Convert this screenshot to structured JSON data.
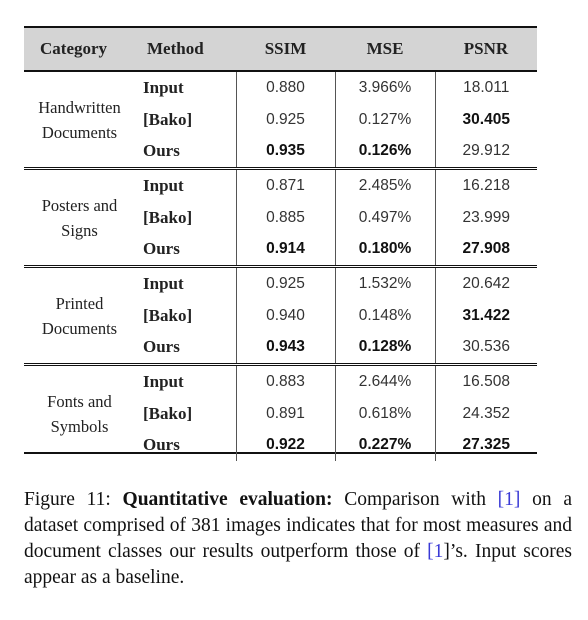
{
  "table": {
    "headers": [
      "Category",
      "Method",
      "SSIM",
      "MSE",
      "PSNR"
    ],
    "groups": [
      {
        "category_lines": [
          "Handwritten",
          "Documents"
        ],
        "rows": [
          {
            "method": "Input",
            "ssim": "0.880",
            "mse": "3.966%",
            "psnr": "18.011",
            "bold": [
              false,
              false,
              false
            ]
          },
          {
            "method": "[Bako]",
            "ssim": "0.925",
            "mse": "0.127%",
            "psnr": "30.405",
            "bold": [
              false,
              false,
              true
            ]
          },
          {
            "method": "Ours",
            "ssim": "0.935",
            "mse": "0.126%",
            "psnr": "29.912",
            "bold": [
              true,
              true,
              false
            ]
          }
        ]
      },
      {
        "category_lines": [
          "Posters and",
          "Signs"
        ],
        "rows": [
          {
            "method": "Input",
            "ssim": "0.871",
            "mse": "2.485%",
            "psnr": "16.218",
            "bold": [
              false,
              false,
              false
            ]
          },
          {
            "method": "[Bako]",
            "ssim": "0.885",
            "mse": "0.497%",
            "psnr": "23.999",
            "bold": [
              false,
              false,
              false
            ]
          },
          {
            "method": "Ours",
            "ssim": "0.914",
            "mse": "0.180%",
            "psnr": "27.908",
            "bold": [
              true,
              true,
              true
            ]
          }
        ]
      },
      {
        "category_lines": [
          "Printed",
          "Documents"
        ],
        "rows": [
          {
            "method": "Input",
            "ssim": "0.925",
            "mse": "1.532%",
            "psnr": "20.642",
            "bold": [
              false,
              false,
              false
            ]
          },
          {
            "method": "[Bako]",
            "ssim": "0.940",
            "mse": "0.148%",
            "psnr": "31.422",
            "bold": [
              false,
              false,
              true
            ]
          },
          {
            "method": "Ours",
            "ssim": "0.943",
            "mse": "0.128%",
            "psnr": "30.536",
            "bold": [
              true,
              true,
              false
            ]
          }
        ]
      },
      {
        "category_lines": [
          "Fonts and",
          "Symbols"
        ],
        "rows": [
          {
            "method": "Input",
            "ssim": "0.883",
            "mse": "2.644%",
            "psnr": "16.508",
            "bold": [
              false,
              false,
              false
            ]
          },
          {
            "method": "[Bako]",
            "ssim": "0.891",
            "mse": "0.618%",
            "psnr": "24.352",
            "bold": [
              false,
              false,
              false
            ]
          },
          {
            "method": "Ours",
            "ssim": "0.922",
            "mse": "0.227%",
            "psnr": "27.325",
            "bold": [
              true,
              true,
              true
            ]
          }
        ]
      }
    ]
  },
  "caption": {
    "label": "Figure 11:",
    "heading": "Quantitative evaluation:",
    "part1": "Comparison with",
    "ref": "1",
    "part2": "on a dataset comprised of 381 images indicates that for most measures and document classes our results outperform those of",
    "part3": "]’s. Input scores appear as a baseline."
  },
  "colors": {
    "header_bg": "#d4d4d4",
    "ref_link": "#3a3ad6"
  }
}
